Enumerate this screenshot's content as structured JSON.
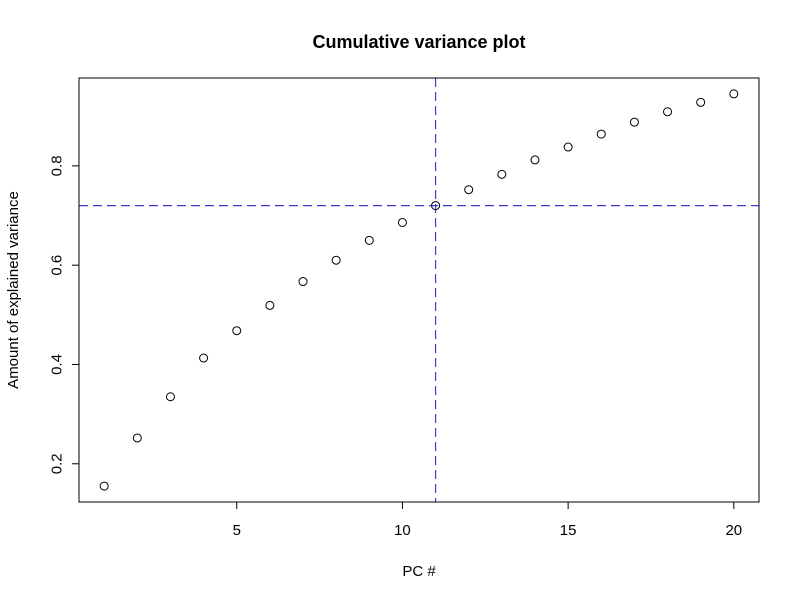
{
  "chart_data": {
    "type": "scatter",
    "title": "Cumulative variance plot",
    "xlabel": "PC #",
    "ylabel": "Amount of explained variance",
    "x": [
      1,
      2,
      3,
      4,
      5,
      6,
      7,
      8,
      9,
      10,
      11,
      12,
      13,
      14,
      15,
      16,
      17,
      18,
      19,
      20
    ],
    "y": [
      0.155,
      0.252,
      0.335,
      0.413,
      0.468,
      0.519,
      0.567,
      0.61,
      0.65,
      0.686,
      0.72,
      0.752,
      0.783,
      0.812,
      0.838,
      0.864,
      0.888,
      0.909,
      0.928,
      0.945
    ],
    "xlim": [
      0.24,
      20.76
    ],
    "ylim": [
      0.123,
      0.977
    ],
    "xticks": [
      5,
      10,
      15,
      20
    ],
    "yticks": [
      0.2,
      0.4,
      0.6,
      0.8
    ],
    "reference_lines": {
      "vertical_x": 11,
      "horizontal_y": 0.72,
      "color": "#3a3ad6",
      "style": "dashed"
    },
    "marker": "open-circle",
    "grid": false,
    "legend": "none"
  }
}
